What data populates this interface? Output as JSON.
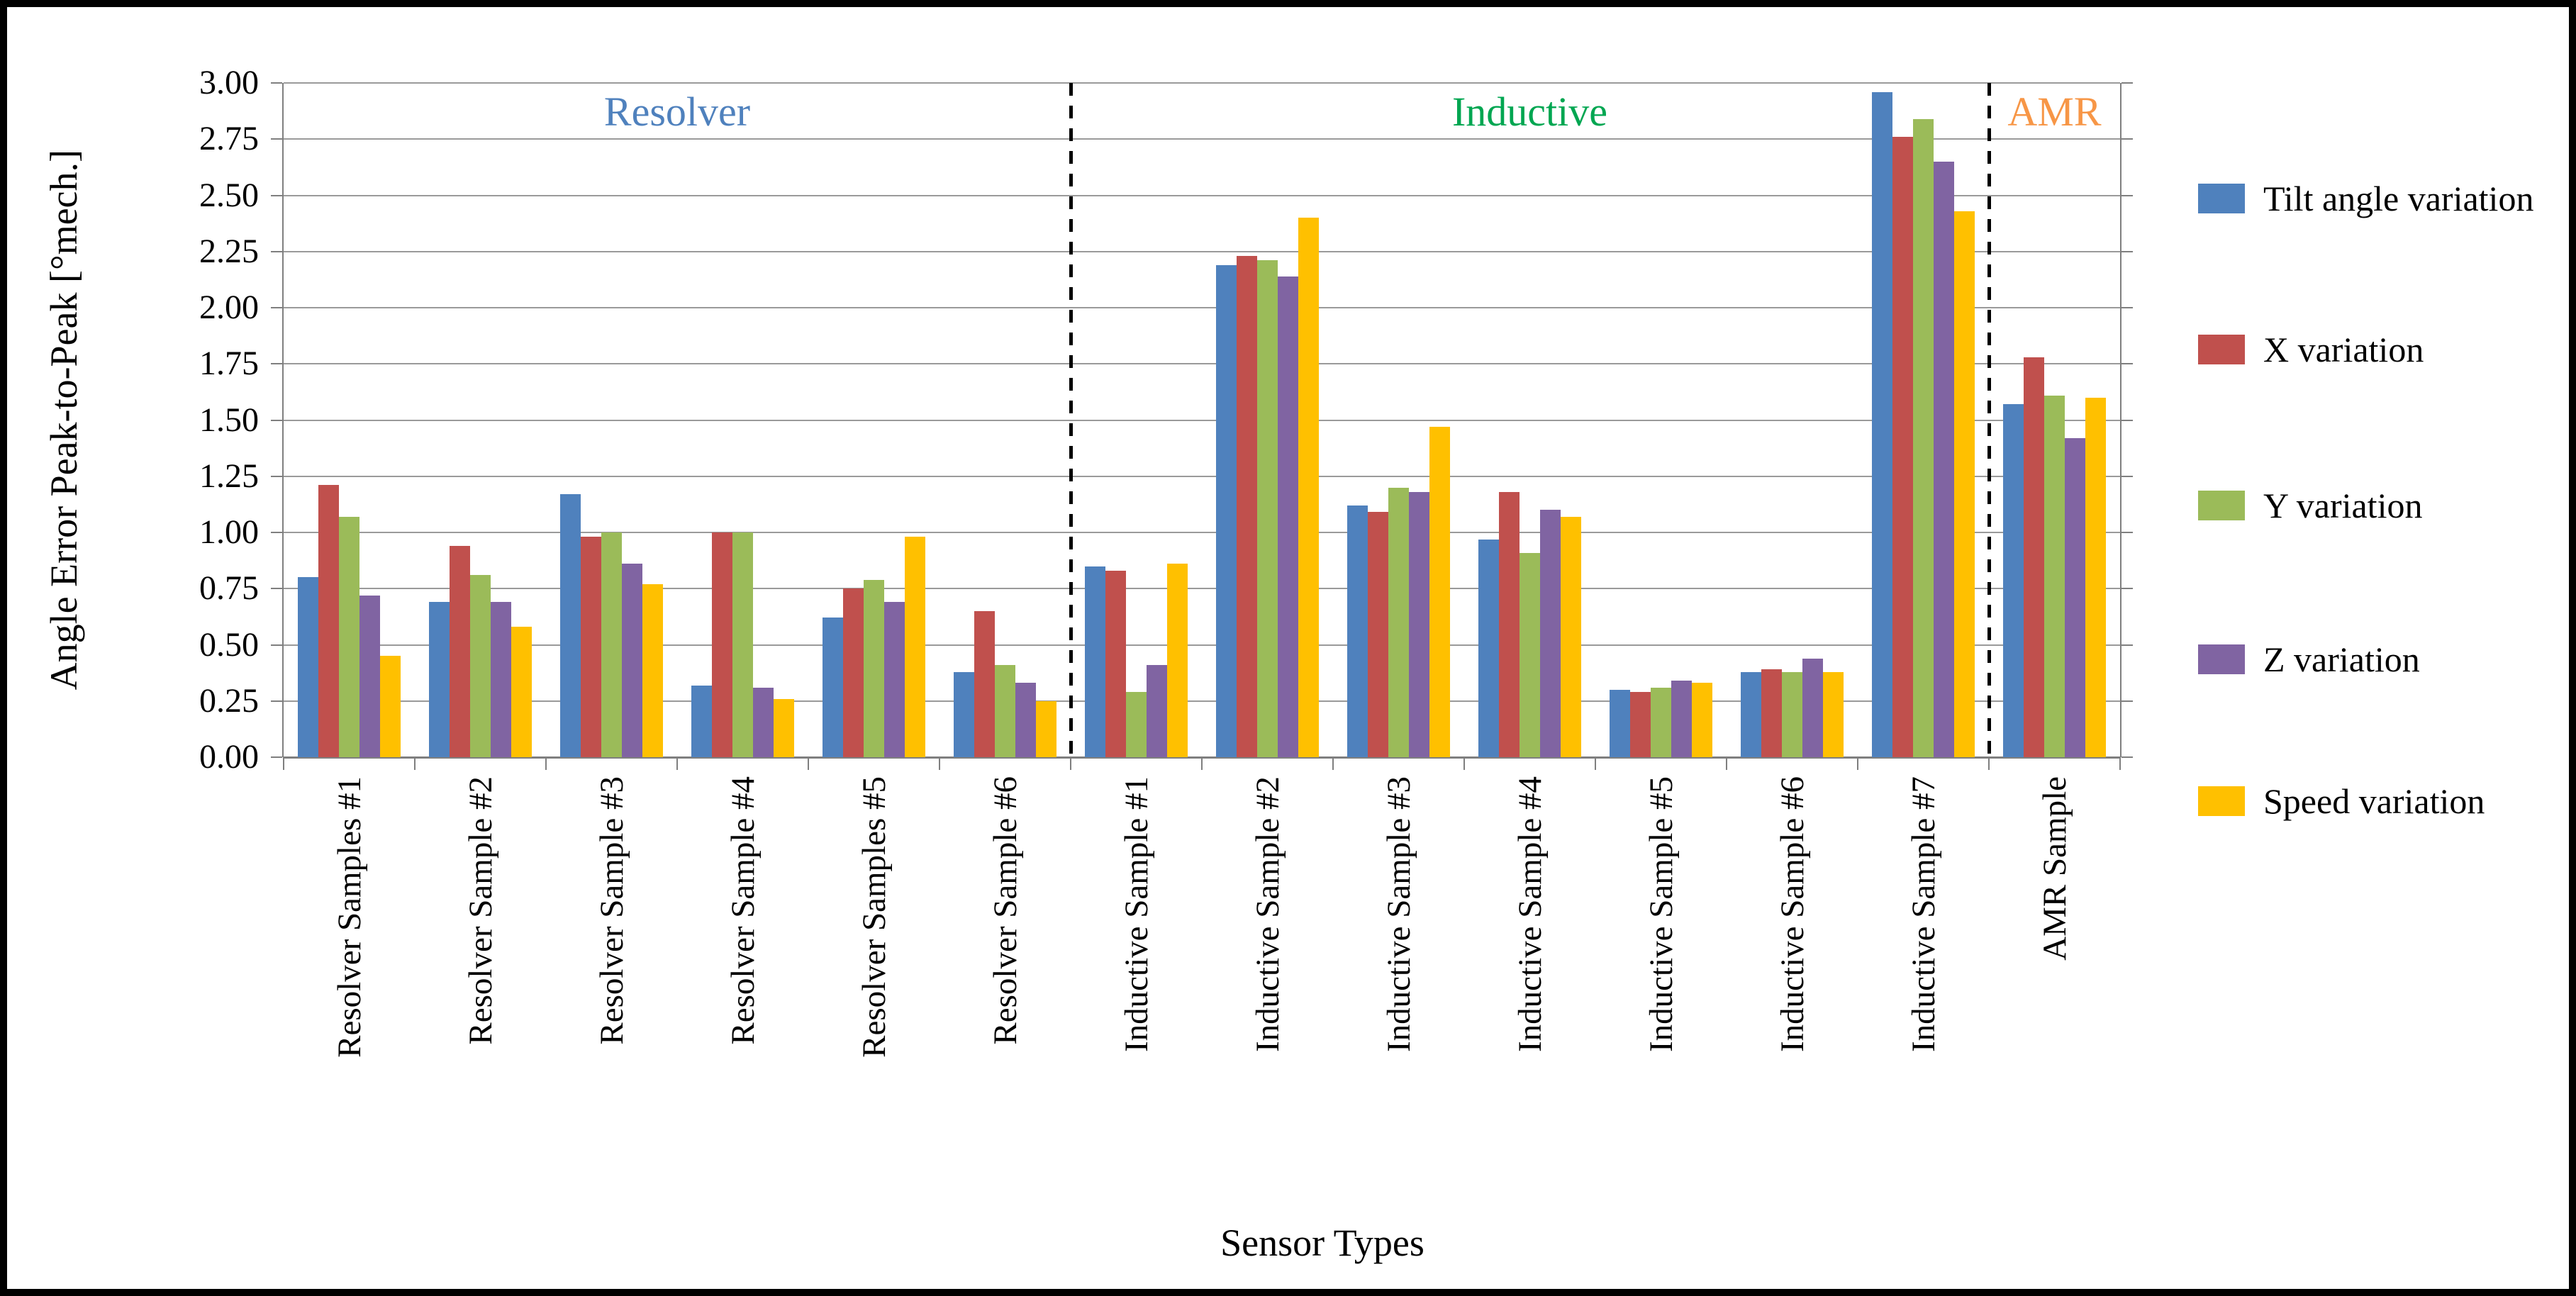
{
  "figure": {
    "background": "#ffffff",
    "border_color": "#000000",
    "gridline_color": "#9a9a9a",
    "axis_color": "#7f7f7f"
  },
  "sections": [
    {
      "label": "Resolver",
      "color": "#4F81BD",
      "start": 0,
      "end": 6
    },
    {
      "label": "Inductive",
      "color": "#00A651",
      "start": 6,
      "end": 13
    },
    {
      "label": "AMR",
      "color": "#F79646",
      "start": 13,
      "end": 14
    }
  ],
  "chart_data": {
    "type": "bar",
    "title": "",
    "xlabel": "Sensor Types",
    "ylabel": "Angle Error Peak-to-Peak [°mech.]",
    "ylim": [
      0,
      3
    ],
    "ytick_step": 0.25,
    "ytick_decimals": 2,
    "grid": true,
    "legend_position": "right",
    "categories": [
      "Resolver Samples #1",
      "Resolver Sample #2",
      "Resolver Sample #3",
      "Resolver Sample #4",
      "Resolver Samples #5",
      "Resolver Sample #6",
      "Inductive Sample #1",
      "Inductive Sample #2",
      "Inductive Sample #3",
      "Inductive Sample #4",
      "Inductive Sample #5",
      "Inductive Sample #6",
      "Inductive Sample #7",
      "AMR Sample"
    ],
    "series": [
      {
        "name": "Tilt angle variation",
        "color": "#4F81BD",
        "values": [
          0.8,
          0.69,
          1.17,
          0.32,
          0.62,
          0.38,
          0.85,
          2.19,
          1.12,
          0.97,
          0.3,
          0.38,
          2.96,
          1.57
        ]
      },
      {
        "name": "X variation",
        "color": "#C0504D",
        "values": [
          1.21,
          0.94,
          0.98,
          1.0,
          0.75,
          0.65,
          0.83,
          2.23,
          1.09,
          1.18,
          0.29,
          0.39,
          2.76,
          1.78
        ]
      },
      {
        "name": "Y variation",
        "color": "#9BBB59",
        "values": [
          1.07,
          0.81,
          1.0,
          1.0,
          0.79,
          0.41,
          0.29,
          2.21,
          1.2,
          0.91,
          0.31,
          0.38,
          2.84,
          1.61
        ]
      },
      {
        "name": "Z variation",
        "color": "#8064A2",
        "values": [
          0.72,
          0.69,
          0.86,
          0.31,
          0.69,
          0.33,
          0.41,
          2.14,
          1.18,
          1.1,
          0.34,
          0.44,
          2.65,
          1.42
        ]
      },
      {
        "name": "Speed variation",
        "color": "#FFC000",
        "values": [
          0.45,
          0.58,
          0.77,
          0.26,
          0.98,
          0.25,
          0.86,
          2.4,
          1.47,
          1.07,
          0.33,
          0.38,
          2.43,
          1.6
        ]
      }
    ]
  }
}
